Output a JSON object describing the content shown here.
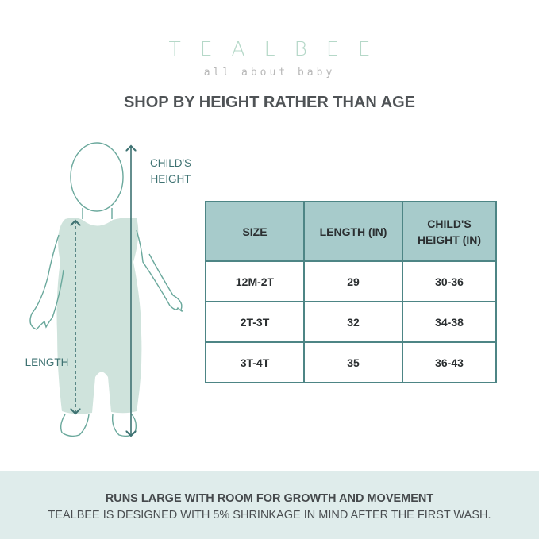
{
  "brand": {
    "logo_text": "TEALBEE",
    "tagline": "all about baby",
    "color": "#b5d8c8"
  },
  "title": "SHOP BY HEIGHT RATHER THAN AGE",
  "figure": {
    "height_label_line1": "CHILD'S",
    "height_label_line2": "HEIGHT",
    "length_label": "LENGTH",
    "fill_color": "#cfe3dc",
    "line_color": "#6aa89c"
  },
  "size_table": {
    "headers": [
      "SIZE",
      "LENGTH (IN)",
      "CHILD'S HEIGHT (IN)"
    ],
    "rows": [
      [
        "12M-2T",
        "29",
        "30-36"
      ],
      [
        "2T-3T",
        "32",
        "34-38"
      ],
      [
        "3T-4T",
        "35",
        "36-43"
      ]
    ],
    "header_color": "#a7cbcb"
  },
  "footer": {
    "headline": "RUNS LARGE WITH ROOM FOR GROWTH AND MOVEMENT",
    "note": "TEALBEE IS DESIGNED WITH 5% SHRINKAGE IN MIND AFTER THE FIRST WASH.",
    "background": "#dfeceb"
  }
}
